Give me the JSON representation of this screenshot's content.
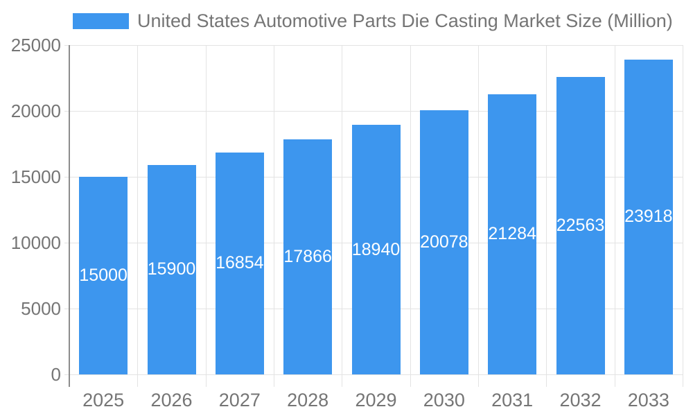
{
  "legend": {
    "label": "United States Automotive Parts Die Casting Market Size (Million)",
    "swatch_color": "#3D96EE"
  },
  "chart_data": {
    "type": "bar",
    "title": "United States Automotive Parts Die Casting Market Size (Million)",
    "categories": [
      "2025",
      "2026",
      "2027",
      "2028",
      "2029",
      "2030",
      "2031",
      "2032",
      "2033"
    ],
    "values": [
      15000,
      15900,
      16854,
      17866,
      18940,
      20078,
      21284,
      22563,
      23918
    ],
    "xlabel": "",
    "ylabel": "",
    "ylim": [
      0,
      25000
    ],
    "yticks": [
      0,
      5000,
      10000,
      15000,
      20000,
      25000
    ],
    "grid": "on",
    "legend_position": "top",
    "bar_color": "#3D96EE",
    "bar_label_color": "#ffffff",
    "axis_text_color": "#757575",
    "grid_color": "#E3E3E3",
    "axis_line_color": "#8C8C8C"
  }
}
